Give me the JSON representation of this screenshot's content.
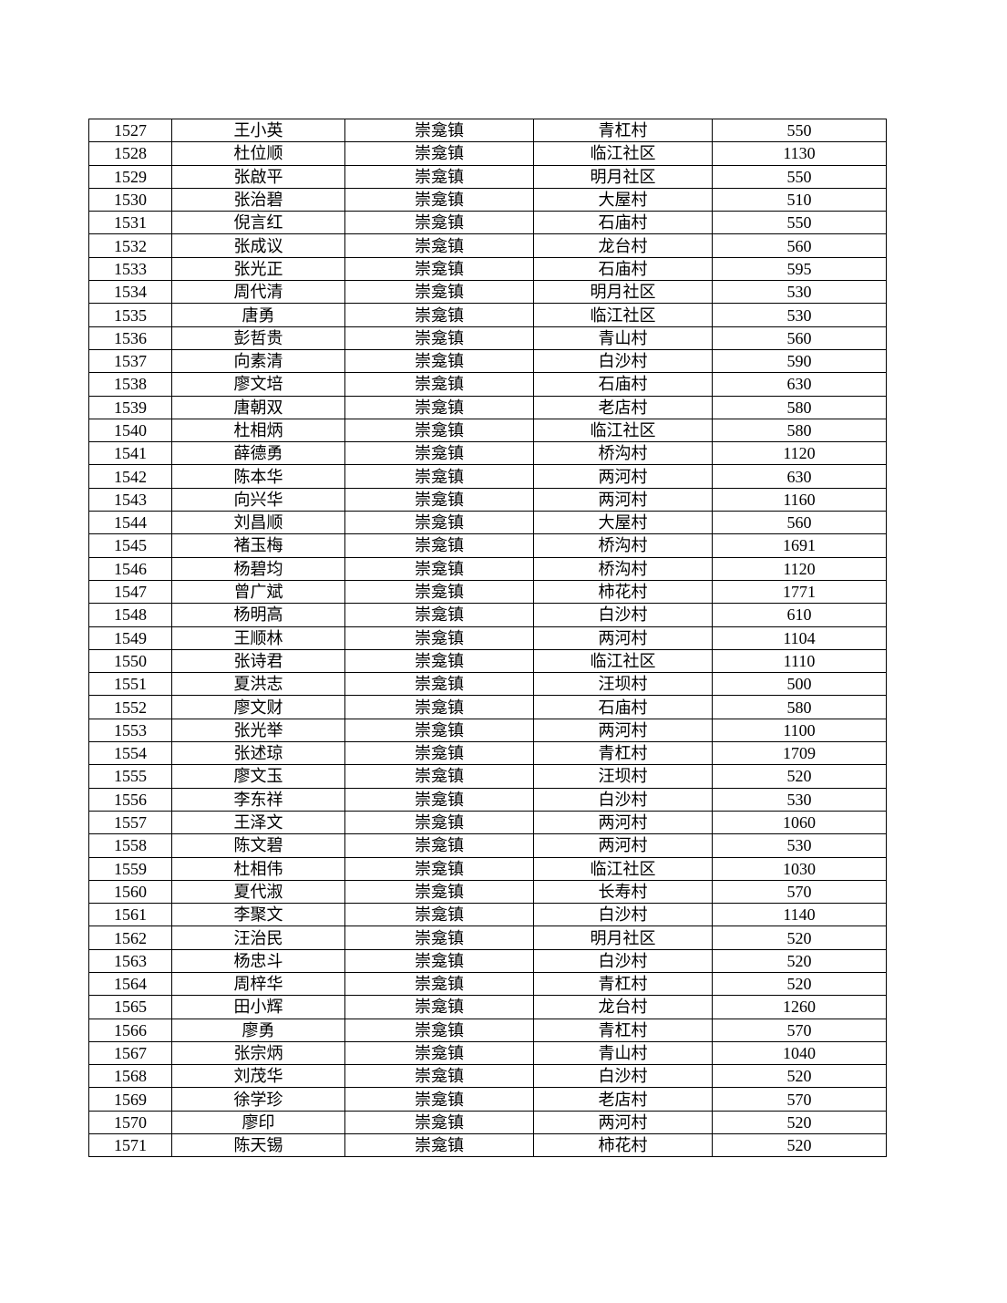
{
  "table": {
    "rows": [
      [
        "1527",
        "王小英",
        "崇龛镇",
        "青杠村",
        "550"
      ],
      [
        "1528",
        "杜位顺",
        "崇龛镇",
        "临江社区",
        "1130"
      ],
      [
        "1529",
        "张啟平",
        "崇龛镇",
        "明月社区",
        "550"
      ],
      [
        "1530",
        "张治碧",
        "崇龛镇",
        "大屋村",
        "510"
      ],
      [
        "1531",
        "倪言红",
        "崇龛镇",
        "石庙村",
        "550"
      ],
      [
        "1532",
        "张成议",
        "崇龛镇",
        "龙台村",
        "560"
      ],
      [
        "1533",
        "张光正",
        "崇龛镇",
        "石庙村",
        "595"
      ],
      [
        "1534",
        "周代清",
        "崇龛镇",
        "明月社区",
        "530"
      ],
      [
        "1535",
        "唐勇",
        "崇龛镇",
        "临江社区",
        "530"
      ],
      [
        "1536",
        "彭哲贵",
        "崇龛镇",
        "青山村",
        "560"
      ],
      [
        "1537",
        "向素清",
        "崇龛镇",
        "白沙村",
        "590"
      ],
      [
        "1538",
        "廖文培",
        "崇龛镇",
        "石庙村",
        "630"
      ],
      [
        "1539",
        "唐朝双",
        "崇龛镇",
        "老店村",
        "580"
      ],
      [
        "1540",
        "杜相炳",
        "崇龛镇",
        "临江社区",
        "580"
      ],
      [
        "1541",
        "薛德勇",
        "崇龛镇",
        "桥沟村",
        "1120"
      ],
      [
        "1542",
        "陈本华",
        "崇龛镇",
        "两河村",
        "630"
      ],
      [
        "1543",
        "向兴华",
        "崇龛镇",
        "两河村",
        "1160"
      ],
      [
        "1544",
        "刘昌顺",
        "崇龛镇",
        "大屋村",
        "560"
      ],
      [
        "1545",
        "褚玉梅",
        "崇龛镇",
        "桥沟村",
        "1691"
      ],
      [
        "1546",
        "杨碧均",
        "崇龛镇",
        "桥沟村",
        "1120"
      ],
      [
        "1547",
        "曾广斌",
        "崇龛镇",
        "柿花村",
        "1771"
      ],
      [
        "1548",
        "杨明高",
        "崇龛镇",
        "白沙村",
        "610"
      ],
      [
        "1549",
        "王顺林",
        "崇龛镇",
        "两河村",
        "1104"
      ],
      [
        "1550",
        "张诗君",
        "崇龛镇",
        "临江社区",
        "1110"
      ],
      [
        "1551",
        "夏洪志",
        "崇龛镇",
        "汪坝村",
        "500"
      ],
      [
        "1552",
        "廖文财",
        "崇龛镇",
        "石庙村",
        "580"
      ],
      [
        "1553",
        "张光举",
        "崇龛镇",
        "两河村",
        "1100"
      ],
      [
        "1554",
        "张述琼",
        "崇龛镇",
        "青杠村",
        "1709"
      ],
      [
        "1555",
        "廖文玉",
        "崇龛镇",
        "汪坝村",
        "520"
      ],
      [
        "1556",
        "李东祥",
        "崇龛镇",
        "白沙村",
        "530"
      ],
      [
        "1557",
        "王泽文",
        "崇龛镇",
        "两河村",
        "1060"
      ],
      [
        "1558",
        "陈文碧",
        "崇龛镇",
        "两河村",
        "530"
      ],
      [
        "1559",
        "杜相伟",
        "崇龛镇",
        "临江社区",
        "1030"
      ],
      [
        "1560",
        "夏代淑",
        "崇龛镇",
        "长寿村",
        "570"
      ],
      [
        "1561",
        "李聚文",
        "崇龛镇",
        "白沙村",
        "1140"
      ],
      [
        "1562",
        "汪治民",
        "崇龛镇",
        "明月社区",
        "520"
      ],
      [
        "1563",
        "杨忠斗",
        "崇龛镇",
        "白沙村",
        "520"
      ],
      [
        "1564",
        "周梓华",
        "崇龛镇",
        "青杠村",
        "520"
      ],
      [
        "1565",
        "田小辉",
        "崇龛镇",
        "龙台村",
        "1260"
      ],
      [
        "1566",
        "廖勇",
        "崇龛镇",
        "青杠村",
        "570"
      ],
      [
        "1567",
        "张宗炳",
        "崇龛镇",
        "青山村",
        "1040"
      ],
      [
        "1568",
        "刘茂华",
        "崇龛镇",
        "白沙村",
        "520"
      ],
      [
        "1569",
        "徐学珍",
        "崇龛镇",
        "老店村",
        "570"
      ],
      [
        "1570",
        "廖印",
        "崇龛镇",
        "两河村",
        "520"
      ],
      [
        "1571",
        "陈天锡",
        "崇龛镇",
        "柿花村",
        "520"
      ]
    ]
  }
}
